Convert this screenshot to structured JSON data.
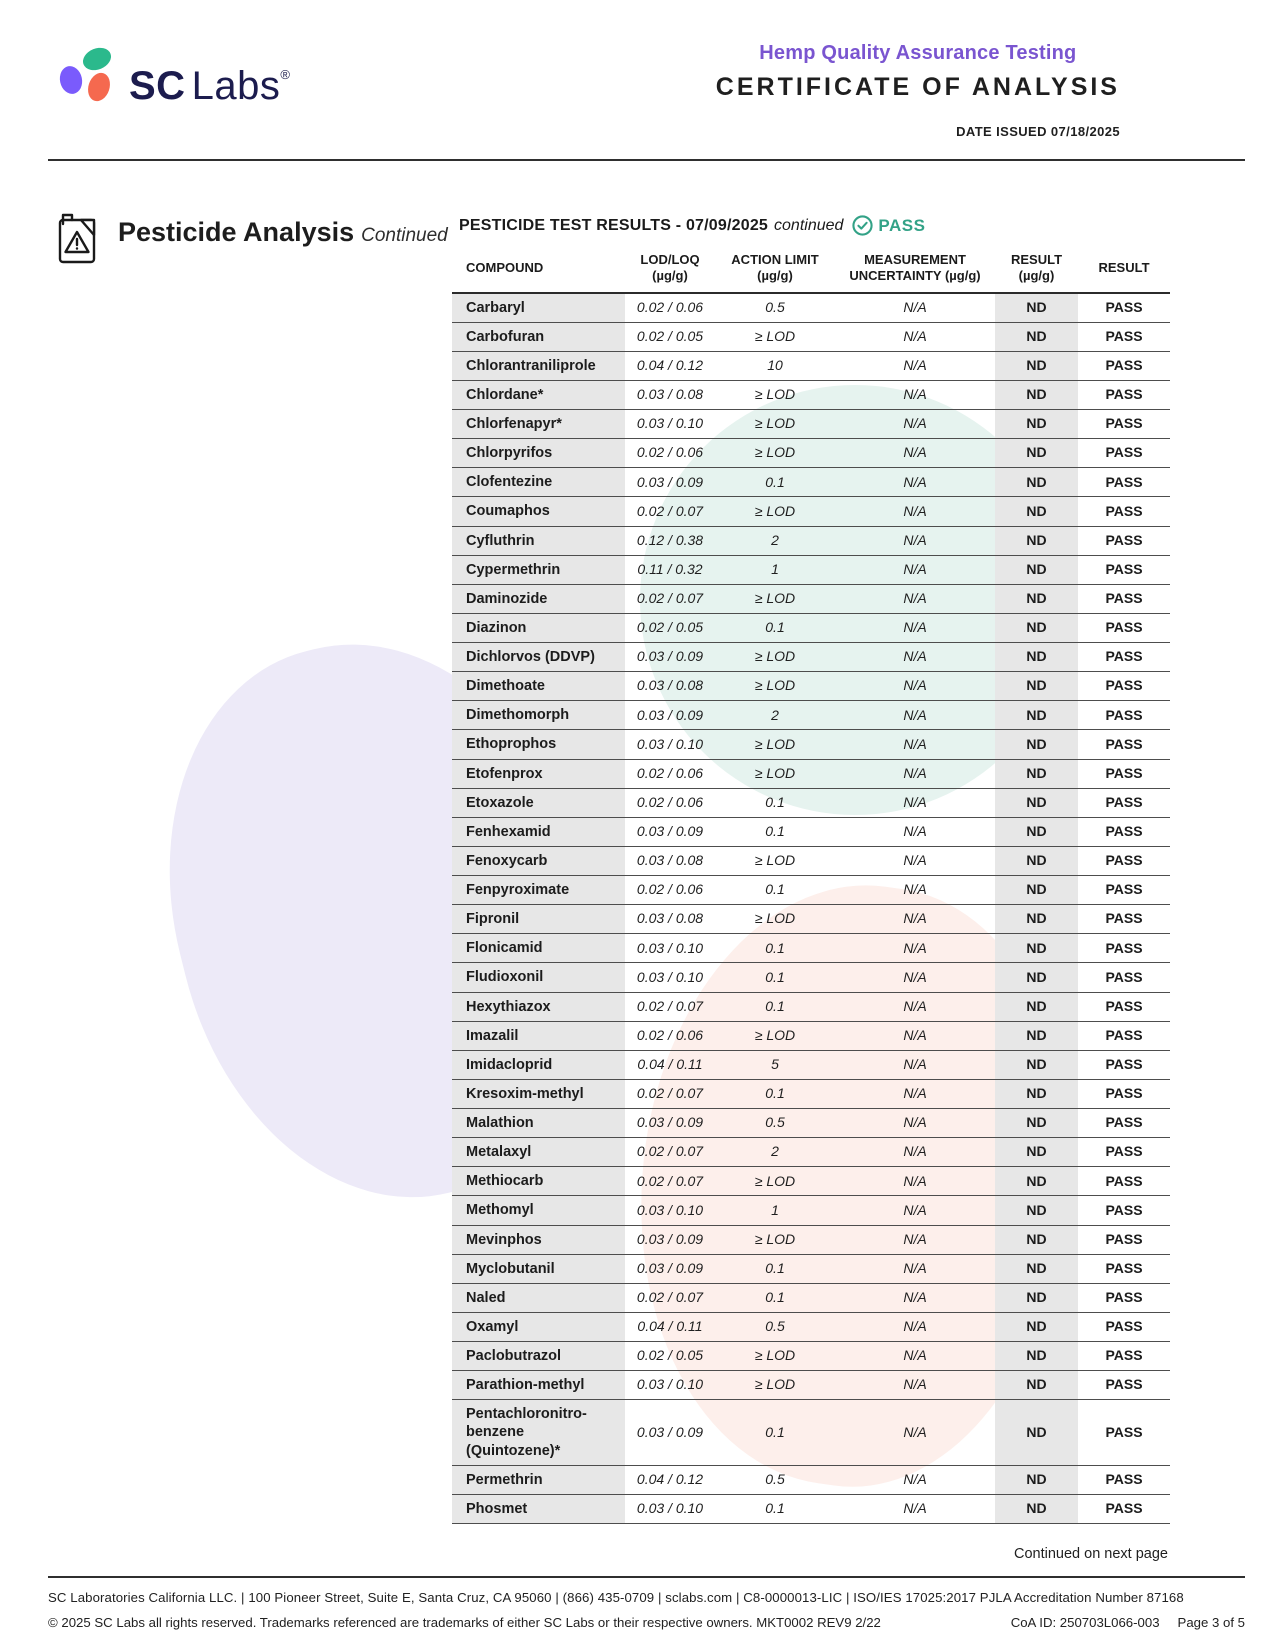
{
  "header": {
    "brand_sc": "SC",
    "brand_labs": "Labs",
    "registered": "®",
    "program_title": "Hemp Quality Assurance Testing",
    "doc_title": "CERTIFICATE OF ANALYSIS",
    "date_issued": "DATE ISSUED 07/18/2025"
  },
  "section": {
    "title": "Pesticide Analysis",
    "title_suffix": "Continued",
    "results_heading": "PESTICIDE TEST RESULTS - 07/09/2025",
    "results_heading_suffix": "continued",
    "status_label": "PASS"
  },
  "colors": {
    "accent_purple": "#7a55d0",
    "pass_teal": "#33a287",
    "logo_green": "#2bb98c",
    "logo_purple": "#7a5bfc",
    "logo_coral": "#f5694f",
    "logo_navy": "#1c1c4e",
    "row_shade": "#e7e7e7"
  },
  "table": {
    "columns": [
      "COMPOUND",
      "LOD/LOQ\n(µg/g)",
      "ACTION LIMIT\n(µg/g)",
      "MEASUREMENT\nUNCERTAINTY (µg/g)",
      "RESULT\n(µg/g)",
      "RESULT"
    ],
    "rows": [
      {
        "compound": "Carbaryl",
        "lod_loq": "0.02 / 0.06",
        "action_limit": "0.5",
        "uncertainty": "N/A",
        "result": "ND",
        "status": "PASS"
      },
      {
        "compound": "Carbofuran",
        "lod_loq": "0.02 / 0.05",
        "action_limit": "≥ LOD",
        "uncertainty": "N/A",
        "result": "ND",
        "status": "PASS"
      },
      {
        "compound": "Chlorantraniliprole",
        "lod_loq": "0.04 / 0.12",
        "action_limit": "10",
        "uncertainty": "N/A",
        "result": "ND",
        "status": "PASS"
      },
      {
        "compound": "Chlordane*",
        "lod_loq": "0.03 / 0.08",
        "action_limit": "≥ LOD",
        "uncertainty": "N/A",
        "result": "ND",
        "status": "PASS"
      },
      {
        "compound": "Chlorfenapyr*",
        "lod_loq": "0.03 / 0.10",
        "action_limit": "≥ LOD",
        "uncertainty": "N/A",
        "result": "ND",
        "status": "PASS"
      },
      {
        "compound": "Chlorpyrifos",
        "lod_loq": "0.02 / 0.06",
        "action_limit": "≥ LOD",
        "uncertainty": "N/A",
        "result": "ND",
        "status": "PASS"
      },
      {
        "compound": "Clofentezine",
        "lod_loq": "0.03 / 0.09",
        "action_limit": "0.1",
        "uncertainty": "N/A",
        "result": "ND",
        "status": "PASS"
      },
      {
        "compound": "Coumaphos",
        "lod_loq": "0.02 / 0.07",
        "action_limit": "≥ LOD",
        "uncertainty": "N/A",
        "result": "ND",
        "status": "PASS"
      },
      {
        "compound": "Cyfluthrin",
        "lod_loq": "0.12 / 0.38",
        "action_limit": "2",
        "uncertainty": "N/A",
        "result": "ND",
        "status": "PASS"
      },
      {
        "compound": "Cypermethrin",
        "lod_loq": "0.11 / 0.32",
        "action_limit": "1",
        "uncertainty": "N/A",
        "result": "ND",
        "status": "PASS"
      },
      {
        "compound": "Daminozide",
        "lod_loq": "0.02 / 0.07",
        "action_limit": "≥ LOD",
        "uncertainty": "N/A",
        "result": "ND",
        "status": "PASS"
      },
      {
        "compound": "Diazinon",
        "lod_loq": "0.02 / 0.05",
        "action_limit": "0.1",
        "uncertainty": "N/A",
        "result": "ND",
        "status": "PASS"
      },
      {
        "compound": "Dichlorvos (DDVP)",
        "lod_loq": "0.03 / 0.09",
        "action_limit": "≥ LOD",
        "uncertainty": "N/A",
        "result": "ND",
        "status": "PASS"
      },
      {
        "compound": "Dimethoate",
        "lod_loq": "0.03 / 0.08",
        "action_limit": "≥ LOD",
        "uncertainty": "N/A",
        "result": "ND",
        "status": "PASS"
      },
      {
        "compound": "Dimethomorph",
        "lod_loq": "0.03 / 0.09",
        "action_limit": "2",
        "uncertainty": "N/A",
        "result": "ND",
        "status": "PASS"
      },
      {
        "compound": "Ethoprophos",
        "lod_loq": "0.03 / 0.10",
        "action_limit": "≥ LOD",
        "uncertainty": "N/A",
        "result": "ND",
        "status": "PASS"
      },
      {
        "compound": "Etofenprox",
        "lod_loq": "0.02 / 0.06",
        "action_limit": "≥ LOD",
        "uncertainty": "N/A",
        "result": "ND",
        "status": "PASS"
      },
      {
        "compound": "Etoxazole",
        "lod_loq": "0.02 / 0.06",
        "action_limit": "0.1",
        "uncertainty": "N/A",
        "result": "ND",
        "status": "PASS"
      },
      {
        "compound": "Fenhexamid",
        "lod_loq": "0.03 / 0.09",
        "action_limit": "0.1",
        "uncertainty": "N/A",
        "result": "ND",
        "status": "PASS"
      },
      {
        "compound": "Fenoxycarb",
        "lod_loq": "0.03 / 0.08",
        "action_limit": "≥ LOD",
        "uncertainty": "N/A",
        "result": "ND",
        "status": "PASS"
      },
      {
        "compound": "Fenpyroximate",
        "lod_loq": "0.02 / 0.06",
        "action_limit": "0.1",
        "uncertainty": "N/A",
        "result": "ND",
        "status": "PASS"
      },
      {
        "compound": "Fipronil",
        "lod_loq": "0.03 / 0.08",
        "action_limit": "≥ LOD",
        "uncertainty": "N/A",
        "result": "ND",
        "status": "PASS"
      },
      {
        "compound": "Flonicamid",
        "lod_loq": "0.03 / 0.10",
        "action_limit": "0.1",
        "uncertainty": "N/A",
        "result": "ND",
        "status": "PASS"
      },
      {
        "compound": "Fludioxonil",
        "lod_loq": "0.03 / 0.10",
        "action_limit": "0.1",
        "uncertainty": "N/A",
        "result": "ND",
        "status": "PASS"
      },
      {
        "compound": "Hexythiazox",
        "lod_loq": "0.02 / 0.07",
        "action_limit": "0.1",
        "uncertainty": "N/A",
        "result": "ND",
        "status": "PASS"
      },
      {
        "compound": "Imazalil",
        "lod_loq": "0.02 / 0.06",
        "action_limit": "≥ LOD",
        "uncertainty": "N/A",
        "result": "ND",
        "status": "PASS"
      },
      {
        "compound": "Imidacloprid",
        "lod_loq": "0.04 / 0.11",
        "action_limit": "5",
        "uncertainty": "N/A",
        "result": "ND",
        "status": "PASS"
      },
      {
        "compound": "Kresoxim-methyl",
        "lod_loq": "0.02 / 0.07",
        "action_limit": "0.1",
        "uncertainty": "N/A",
        "result": "ND",
        "status": "PASS"
      },
      {
        "compound": "Malathion",
        "lod_loq": "0.03 / 0.09",
        "action_limit": "0.5",
        "uncertainty": "N/A",
        "result": "ND",
        "status": "PASS"
      },
      {
        "compound": "Metalaxyl",
        "lod_loq": "0.02 / 0.07",
        "action_limit": "2",
        "uncertainty": "N/A",
        "result": "ND",
        "status": "PASS"
      },
      {
        "compound": "Methiocarb",
        "lod_loq": "0.02 / 0.07",
        "action_limit": "≥ LOD",
        "uncertainty": "N/A",
        "result": "ND",
        "status": "PASS"
      },
      {
        "compound": "Methomyl",
        "lod_loq": "0.03 / 0.10",
        "action_limit": "1",
        "uncertainty": "N/A",
        "result": "ND",
        "status": "PASS"
      },
      {
        "compound": "Mevinphos",
        "lod_loq": "0.03 / 0.09",
        "action_limit": "≥ LOD",
        "uncertainty": "N/A",
        "result": "ND",
        "status": "PASS"
      },
      {
        "compound": "Myclobutanil",
        "lod_loq": "0.03 / 0.09",
        "action_limit": "0.1",
        "uncertainty": "N/A",
        "result": "ND",
        "status": "PASS"
      },
      {
        "compound": "Naled",
        "lod_loq": "0.02 / 0.07",
        "action_limit": "0.1",
        "uncertainty": "N/A",
        "result": "ND",
        "status": "PASS"
      },
      {
        "compound": "Oxamyl",
        "lod_loq": "0.04 / 0.11",
        "action_limit": "0.5",
        "uncertainty": "N/A",
        "result": "ND",
        "status": "PASS"
      },
      {
        "compound": "Paclobutrazol",
        "lod_loq": "0.02 / 0.05",
        "action_limit": "≥ LOD",
        "uncertainty": "N/A",
        "result": "ND",
        "status": "PASS"
      },
      {
        "compound": "Parathion-methyl",
        "lod_loq": "0.03 / 0.10",
        "action_limit": "≥ LOD",
        "uncertainty": "N/A",
        "result": "ND",
        "status": "PASS"
      },
      {
        "compound": "Pentachloronitro-\nbenzene (Quintozene)*",
        "lod_loq": "0.03 / 0.09",
        "action_limit": "0.1",
        "uncertainty": "N/A",
        "result": "ND",
        "status": "PASS"
      },
      {
        "compound": "Permethrin",
        "lod_loq": "0.04 / 0.12",
        "action_limit": "0.5",
        "uncertainty": "N/A",
        "result": "ND",
        "status": "PASS"
      },
      {
        "compound": "Phosmet",
        "lod_loq": "0.03 / 0.10",
        "action_limit": "0.1",
        "uncertainty": "N/A",
        "result": "ND",
        "status": "PASS"
      }
    ]
  },
  "footer": {
    "continued": "Continued on next page",
    "line1": "SC Laboratories California LLC. | 100 Pioneer Street, Suite E, Santa Cruz, CA 95060 | (866) 435-0709 | sclabs.com | C8-0000013-LIC | ISO/IES 17025:2017 PJLA Accreditation Number 87168",
    "line2": "© 2025 SC Labs all rights reserved. Trademarks referenced are trademarks of either SC Labs or their respective owners. MKT0002 REV9 2/22",
    "coa_id": "CoA ID: 250703L066-003",
    "page_label": "Page 3 of 5"
  }
}
